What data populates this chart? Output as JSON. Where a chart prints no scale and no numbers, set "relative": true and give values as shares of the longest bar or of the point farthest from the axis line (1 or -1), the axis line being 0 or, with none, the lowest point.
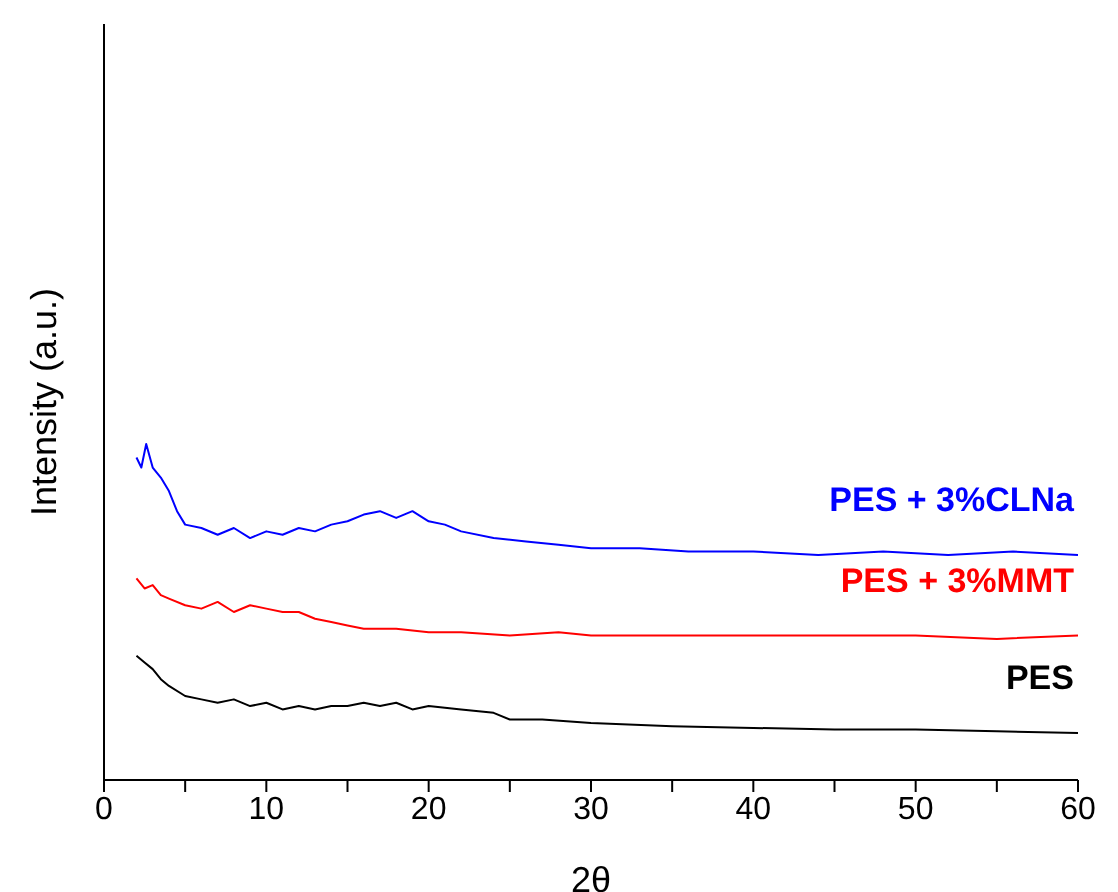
{
  "chart_data": {
    "type": "line",
    "xlabel": "2θ",
    "ylabel": "Intensity (a.u.)",
    "relative": true,
    "xlim": [
      0,
      60
    ],
    "xticks": [
      0,
      {
        "value": 5,
        "label": null
      },
      10,
      {
        "value": 15,
        "label": null
      },
      20,
      {
        "value": 25,
        "label": null
      },
      30,
      {
        "value": 35,
        "label": null
      },
      40,
      {
        "value": 45,
        "label": null
      },
      50,
      {
        "value": 55,
        "label": null
      },
      60
    ],
    "tick_labels": "x",
    "grid": false,
    "legend": false,
    "marker": "none",
    "line_style": "solid",
    "series": [
      {
        "name": "PES + 3%CLNa",
        "color": "#0000ff",
        "x": [
          2,
          2.3,
          2.6,
          3,
          3.5,
          4,
          4.5,
          5,
          6,
          7,
          8,
          9,
          10,
          11,
          12,
          13,
          14,
          15,
          16,
          17,
          18,
          19,
          20,
          21,
          22,
          24,
          26,
          28,
          30,
          33,
          36,
          40,
          44,
          48,
          52,
          56,
          60
        ],
        "values": [
          0.96,
          0.93,
          1.0,
          0.93,
          0.9,
          0.86,
          0.8,
          0.76,
          0.75,
          0.73,
          0.75,
          0.72,
          0.74,
          0.73,
          0.75,
          0.74,
          0.76,
          0.77,
          0.79,
          0.8,
          0.78,
          0.8,
          0.77,
          0.76,
          0.74,
          0.72,
          0.71,
          0.7,
          0.69,
          0.69,
          0.68,
          0.68,
          0.67,
          0.68,
          0.67,
          0.68,
          0.67
        ]
      },
      {
        "name": "PES + 3%MMT",
        "color": "#ff0000",
        "x": [
          2,
          2.5,
          3,
          3.5,
          4,
          5,
          6,
          7,
          8,
          9,
          10,
          11,
          12,
          13,
          14,
          15,
          16,
          18,
          20,
          22,
          25,
          28,
          30,
          35,
          40,
          45,
          50,
          55,
          60
        ],
        "values": [
          0.6,
          0.57,
          0.58,
          0.55,
          0.54,
          0.52,
          0.51,
          0.53,
          0.5,
          0.52,
          0.51,
          0.5,
          0.5,
          0.48,
          0.47,
          0.46,
          0.45,
          0.45,
          0.44,
          0.44,
          0.43,
          0.44,
          0.43,
          0.43,
          0.43,
          0.43,
          0.43,
          0.42,
          0.43
        ]
      },
      {
        "name": "PES",
        "color": "#000000",
        "x": [
          2,
          2.5,
          3,
          3.5,
          4,
          5,
          6,
          7,
          8,
          9,
          10,
          11,
          12,
          13,
          14,
          15,
          16,
          17,
          18,
          19,
          20,
          22,
          24,
          25,
          27,
          30,
          35,
          40,
          45,
          50,
          55,
          60
        ],
        "values": [
          0.37,
          0.35,
          0.33,
          0.3,
          0.28,
          0.25,
          0.24,
          0.23,
          0.24,
          0.22,
          0.23,
          0.21,
          0.22,
          0.21,
          0.22,
          0.22,
          0.23,
          0.22,
          0.23,
          0.21,
          0.22,
          0.21,
          0.2,
          0.18,
          0.18,
          0.17,
          0.16,
          0.155,
          0.15,
          0.15,
          0.145,
          0.14
        ]
      }
    ]
  }
}
